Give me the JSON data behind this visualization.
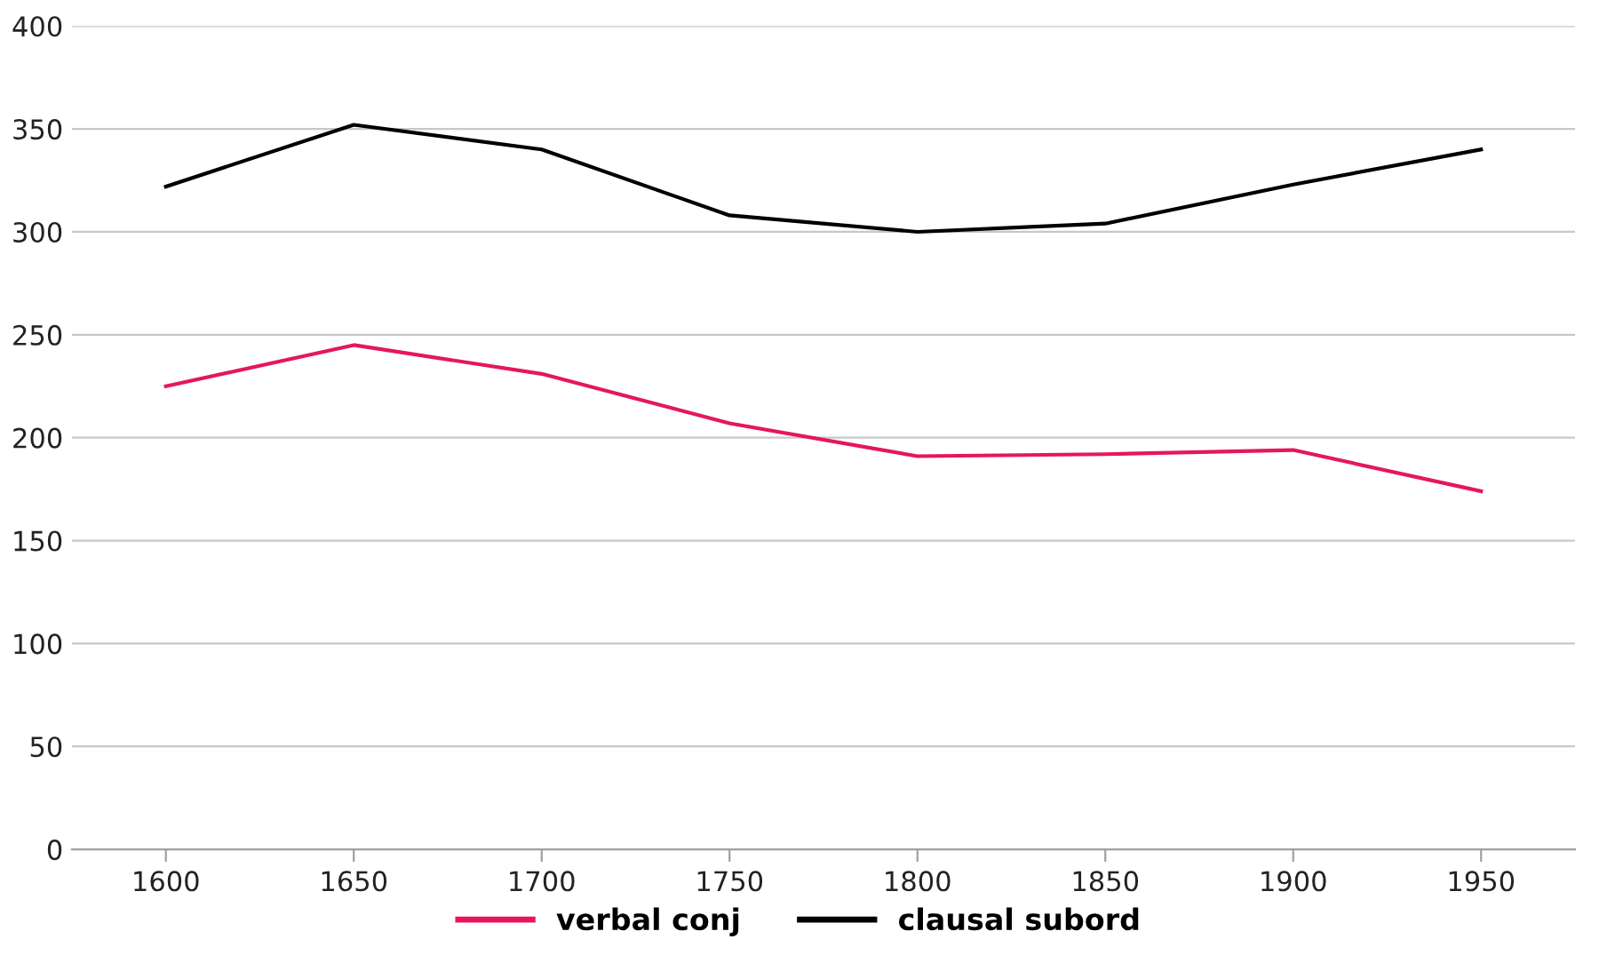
{
  "chart_data": {
    "type": "line",
    "categories": [
      "1600",
      "1650",
      "1700",
      "1750",
      "1800",
      "1850",
      "1900",
      "1950"
    ],
    "series": [
      {
        "name": "verbal conj",
        "color": "#e5175a",
        "values": [
          225,
          245,
          231,
          207,
          191,
          192,
          194,
          174
        ]
      },
      {
        "name": "clausal subord",
        "color": "#000000",
        "values": [
          322,
          352,
          340,
          308,
          300,
          304,
          323,
          340
        ]
      }
    ],
    "ylim": [
      0,
      400
    ],
    "yticks": [
      0,
      50,
      100,
      150,
      200,
      250,
      300,
      350,
      400
    ],
    "grid": "y",
    "legend": "bottom",
    "marker": "none",
    "line_style": "solid"
  }
}
